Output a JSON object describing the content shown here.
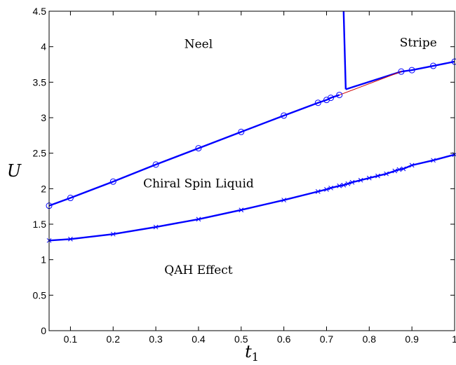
{
  "chart_data": {
    "type": "line",
    "title": "",
    "xlabel": "t",
    "xlabel_subscript": "1",
    "ylabel": "U",
    "xlim": [
      0.05,
      1.0
    ],
    "ylim": [
      0,
      4.5
    ],
    "grid": false,
    "x_ticks": [
      0.1,
      0.2,
      0.3,
      0.4,
      0.5,
      0.6,
      0.7,
      0.8,
      0.9,
      1
    ],
    "x_tick_labels": [
      "0.1",
      "0.2",
      "0.3",
      "0.4",
      "0.5",
      "0.6",
      "0.7",
      "0.8",
      "0.9",
      "1"
    ],
    "y_ticks": [
      0,
      0.5,
      1,
      1.5,
      2,
      2.5,
      3,
      3.5,
      4,
      4.5
    ],
    "y_tick_labels": [
      "0",
      "0.5",
      "1",
      "1.5",
      "2",
      "2.5",
      "3",
      "3.5",
      "4",
      "4.5"
    ],
    "colors": {
      "boundary": "#0000ff",
      "extension": "#cc0000",
      "axes": "#000000"
    },
    "series": [
      {
        "marker": "circle",
        "x": [
          0.05,
          0.1,
          0.2,
          0.3,
          0.4,
          0.5,
          0.6,
          0.68,
          0.7,
          0.71,
          0.73,
          0.875,
          0.9,
          0.95,
          1.0
        ],
        "y": [
          1.76,
          1.87,
          2.1,
          2.34,
          2.57,
          2.8,
          3.03,
          3.21,
          3.25,
          3.28,
          3.32,
          3.65,
          3.67,
          3.73,
          3.79
        ],
        "break_after_x": 0.73
      },
      {
        "marker": "x",
        "x": [
          0.05,
          0.1,
          0.2,
          0.3,
          0.4,
          0.5,
          0.6,
          0.68,
          0.7,
          0.71,
          0.73,
          0.74,
          0.75,
          0.76,
          0.78,
          0.8,
          0.82,
          0.84,
          0.86,
          0.87,
          0.88,
          0.9,
          0.95,
          1.0
        ],
        "y": [
          1.27,
          1.29,
          1.36,
          1.46,
          1.57,
          1.7,
          1.84,
          1.96,
          1.99,
          2.01,
          2.04,
          2.05,
          2.07,
          2.09,
          2.12,
          2.15,
          2.18,
          2.21,
          2.25,
          2.27,
          2.28,
          2.33,
          2.4,
          2.48
        ]
      },
      {
        "marker": "none",
        "x": [
          0.74,
          0.745
        ],
        "y": [
          4.5,
          3.4
        ]
      },
      {
        "marker": "none",
        "x": [
          0.745,
          0.875
        ],
        "y": [
          3.4,
          3.65
        ]
      },
      {
        "marker": "none",
        "x": [
          0.73,
          0.875
        ],
        "y": [
          3.32,
          3.65
        ]
      }
    ],
    "annotations": [
      {
        "text": "Neel",
        "x": 0.4,
        "y": 3.98
      },
      {
        "text": "Stripe",
        "x": 0.915,
        "y": 4.0
      },
      {
        "text": "Chiral Spin Liquid",
        "x": 0.4,
        "y": 2.02
      },
      {
        "text": "QAH Effect",
        "x": 0.4,
        "y": 0.8
      }
    ]
  }
}
